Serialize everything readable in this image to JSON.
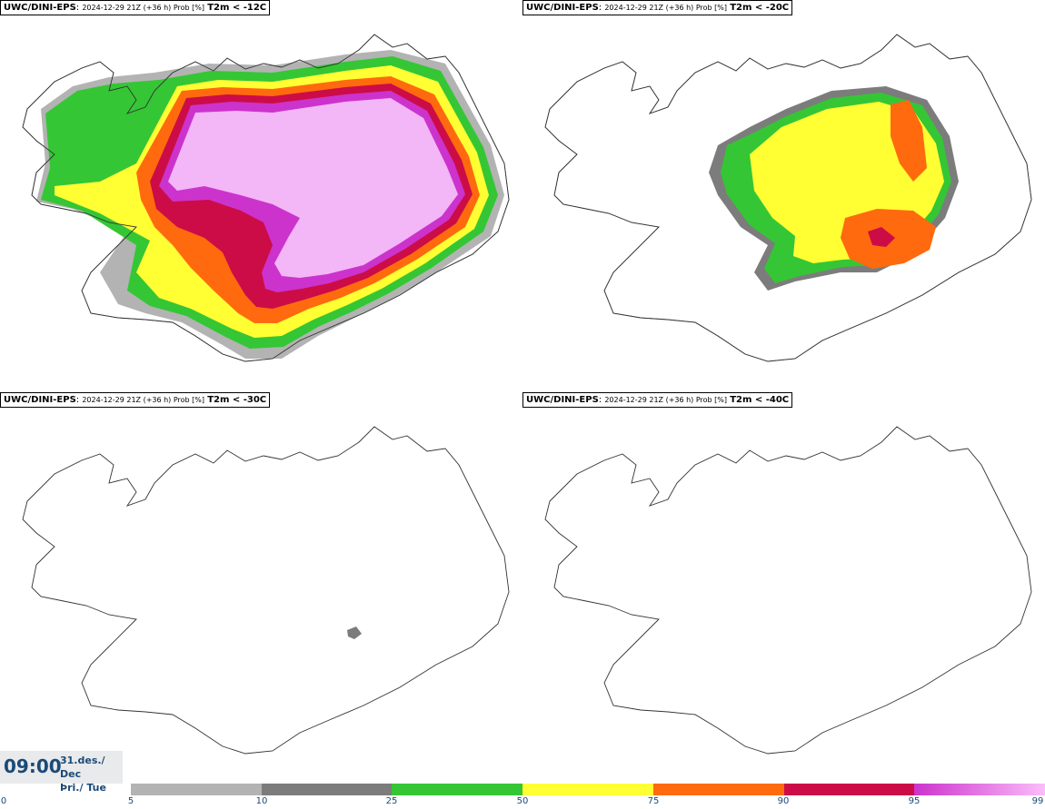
{
  "panels": [
    {
      "model": "UWC/DINI-EPS",
      "meta": "2024-12-29 21Z (+36 h) Prob [%]",
      "variable": "T2m < -12C"
    },
    {
      "model": "UWC/DINI-EPS",
      "meta": "2024-12-29 21Z (+36 h) Prob [%]",
      "variable": "T2m < -20C"
    },
    {
      "model": "UWC/DINI-EPS",
      "meta": "2024-12-29 21Z (+36 h) Prob [%]",
      "variable": "T2m < -30C"
    },
    {
      "model": "UWC/DINI-EPS",
      "meta": "2024-12-29 21Z (+36 h) Prob [%]",
      "variable": "T2m < -40C"
    }
  ],
  "valid_time": {
    "time": "09:00",
    "date_line1": "31.des./ Dec",
    "date_line2": "Þri./ Tue"
  },
  "colorbar": {
    "ticks": [
      "0",
      "5",
      "10",
      "25",
      "50",
      "75",
      "90",
      "95",
      "99"
    ],
    "colors": [
      "#b3b3b3",
      "#7c7c7c",
      "#35c635",
      "#ffff33",
      "#ff6a0e",
      "#cc0c46",
      "#cc33cc"
    ],
    "last_color_end": "#fbbdfa"
  },
  "fill_colors": {
    "c5": "#b3b3b3",
    "c10": "#7c7c7c",
    "c25": "#35c635",
    "c50": "#ffff33",
    "c75": "#ff6a0e",
    "c90": "#cc0c46",
    "c95": "#cc33cc",
    "c99": "#f3b6f7"
  }
}
